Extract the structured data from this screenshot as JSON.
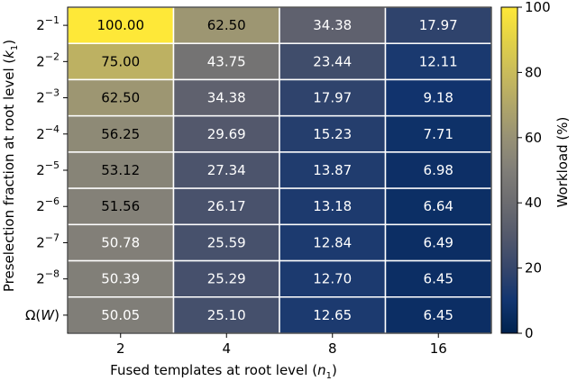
{
  "chart_data": {
    "type": "heatmap",
    "xlabel_main": "Fused templates at root level (",
    "xlabel_var": "n",
    "xlabel_sub": "1",
    "xlabel_end": ")",
    "ylabel_main": "Preselection fraction at root level (",
    "ylabel_var": "k",
    "ylabel_sub": "1",
    "ylabel_end": ")",
    "x_categories": [
      "2",
      "4",
      "8",
      "16"
    ],
    "y_categories": [
      {
        "base": "2",
        "exp": "−1"
      },
      {
        "base": "2",
        "exp": "−2"
      },
      {
        "base": "2",
        "exp": "−3"
      },
      {
        "base": "2",
        "exp": "−4"
      },
      {
        "base": "2",
        "exp": "−5"
      },
      {
        "base": "2",
        "exp": "−6"
      },
      {
        "base": "2",
        "exp": "−7"
      },
      {
        "base": "2",
        "exp": "−8"
      },
      {
        "base": "Ω(",
        "var": "W",
        "end": ")"
      }
    ],
    "values": [
      [
        "100.00",
        "62.50",
        "34.38",
        "17.97"
      ],
      [
        "75.00",
        "43.75",
        "23.44",
        "12.11"
      ],
      [
        "62.50",
        "34.38",
        "17.97",
        "9.18"
      ],
      [
        "56.25",
        "29.69",
        "15.23",
        "7.71"
      ],
      [
        "53.12",
        "27.34",
        "13.87",
        "6.98"
      ],
      [
        "51.56",
        "26.17",
        "13.18",
        "6.64"
      ],
      [
        "50.78",
        "25.59",
        "12.84",
        "6.49"
      ],
      [
        "50.39",
        "25.29",
        "12.70",
        "6.45"
      ],
      [
        "50.05",
        "25.10",
        "12.65",
        "6.45"
      ]
    ],
    "colorbar": {
      "label": "Workload (%)",
      "range": [
        0,
        100
      ],
      "ticks": [
        "0",
        "20",
        "40",
        "60",
        "80",
        "100"
      ],
      "colormap": "cividis"
    }
  }
}
